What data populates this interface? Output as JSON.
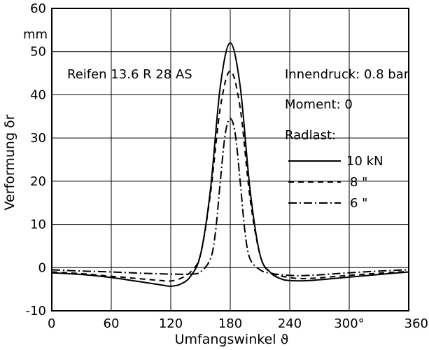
{
  "chart_data": {
    "type": "line",
    "xlabel": "Umfangswinkel ϑ",
    "ylabel": "Verformung δr",
    "y_unit": "mm",
    "xlim": [
      0,
      360
    ],
    "ylim": [
      -10,
      60
    ],
    "x_ticks": [
      0,
      60,
      120,
      180,
      240,
      300,
      360
    ],
    "x_tick_labels": [
      "0",
      "60",
      "120",
      "180",
      "240",
      "300°",
      "360"
    ],
    "y_ticks": [
      -10,
      0,
      10,
      20,
      30,
      40,
      50,
      60
    ],
    "y_tick_labels": [
      "-10",
      "0",
      "10",
      "20",
      "30",
      "40",
      "50",
      "60"
    ],
    "grid": true,
    "annotations": {
      "tire": "Reifen 13.6 R 28 AS",
      "pressure": "Innendruck: 0.8 bar",
      "moment": "Moment: 0",
      "load_title": "Radlast:"
    },
    "legend": {
      "placement": "right",
      "entries": [
        "10 kN",
        "8 \"",
        "6 \""
      ]
    },
    "series": [
      {
        "style": "solid",
        "x": [
          0,
          30,
          60,
          90,
          110,
          120,
          130,
          140,
          150,
          160,
          170,
          180,
          190,
          200,
          210,
          220,
          230,
          240,
          260,
          300,
          330,
          360
        ],
        "y": [
          -1.2,
          -1.6,
          -2.3,
          -3.3,
          -4.0,
          -4.3,
          -3.8,
          -2.0,
          3.0,
          18.0,
          42.0,
          52.0,
          42.0,
          18.0,
          3.0,
          -1.0,
          -2.5,
          -3.0,
          -3.0,
          -2.2,
          -1.6,
          -1.0
        ]
      },
      {
        "style": "dashed",
        "x": [
          0,
          30,
          60,
          90,
          110,
          120,
          130,
          140,
          150,
          160,
          170,
          180,
          190,
          200,
          210,
          220,
          240,
          260,
          300,
          330,
          360
        ],
        "y": [
          -1.0,
          -1.4,
          -2.0,
          -2.6,
          -3.0,
          -3.1,
          -2.5,
          -1.0,
          3.0,
          17.0,
          37.0,
          45.5,
          37.0,
          16.0,
          3.0,
          -1.0,
          -2.3,
          -2.5,
          -1.8,
          -1.3,
          -0.9
        ]
      },
      {
        "style": "dashdot",
        "x": [
          0,
          30,
          60,
          90,
          120,
          140,
          150,
          160,
          165,
          170,
          175,
          180,
          185,
          190,
          195,
          200,
          210,
          220,
          240,
          260,
          300,
          330,
          360
        ],
        "y": [
          -0.5,
          -0.8,
          -1.0,
          -1.3,
          -1.5,
          -1.5,
          -1.0,
          2.0,
          8.0,
          20.0,
          31.0,
          34.5,
          31.0,
          20.0,
          8.0,
          2.0,
          -0.5,
          -1.3,
          -1.8,
          -1.8,
          -1.2,
          -0.8,
          -0.5
        ]
      }
    ]
  }
}
